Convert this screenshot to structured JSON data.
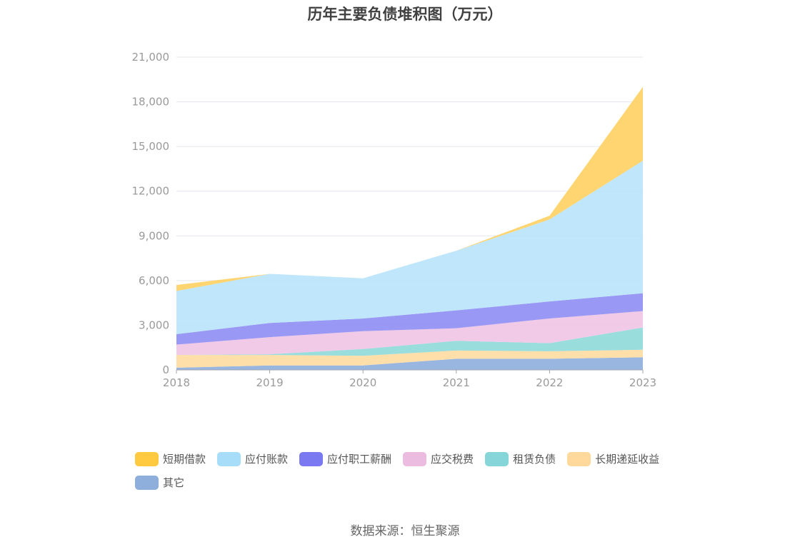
{
  "chart_data": {
    "type": "area",
    "stacked": true,
    "title": "历年主要负债堆积图（万元）",
    "x": [
      "2018",
      "2019",
      "2020",
      "2021",
      "2022",
      "2023"
    ],
    "ylim": [
      0,
      21000
    ],
    "yticks": [
      0,
      3000,
      6000,
      9000,
      12000,
      15000,
      18000,
      21000
    ],
    "ytick_labels": [
      "0",
      "3,000",
      "6,000",
      "9,000",
      "12,000",
      "15,000",
      "18,000",
      "21,000"
    ],
    "grid": true,
    "legend_position": "bottom-left",
    "series": [
      {
        "name": "其它",
        "color": "#8eaedd",
        "values": [
          150,
          300,
          300,
          750,
          750,
          850
        ]
      },
      {
        "name": "长期递延收益",
        "color": "#ffdba0",
        "values": [
          850,
          700,
          650,
          550,
          500,
          500
        ]
      },
      {
        "name": "租赁负债",
        "color": "#8fd9d9",
        "values": [
          0,
          50,
          450,
          650,
          550,
          1500
        ]
      },
      {
        "name": "应交税费",
        "color": "#eec4e4",
        "values": [
          700,
          1150,
          1200,
          850,
          1650,
          1100
        ]
      },
      {
        "name": "应付职工薪酬",
        "color": "#8e8df3",
        "values": [
          700,
          950,
          850,
          1200,
          1150,
          1200
        ]
      },
      {
        "name": "应付账款",
        "color": "#b8e3fa",
        "values": [
          2900,
          3300,
          2700,
          4000,
          5500,
          8900
        ]
      },
      {
        "name": "短期借款",
        "color": "#ffd062",
        "values": [
          400,
          0,
          0,
          0,
          250,
          4950
        ]
      }
    ],
    "legend": [
      {
        "name": "短期借款",
        "color": "#ffc940"
      },
      {
        "name": "应付账款",
        "color": "#a8ddfa"
      },
      {
        "name": "应付职工薪酬",
        "color": "#7b79f2"
      },
      {
        "name": "应交税费",
        "color": "#ebbbe0"
      },
      {
        "name": "租赁负债",
        "color": "#86d6d9"
      },
      {
        "name": "长期递延收益",
        "color": "#ffd99b"
      },
      {
        "name": "其它",
        "color": "#8eaedb"
      }
    ]
  },
  "source": "数据来源：恒生聚源"
}
